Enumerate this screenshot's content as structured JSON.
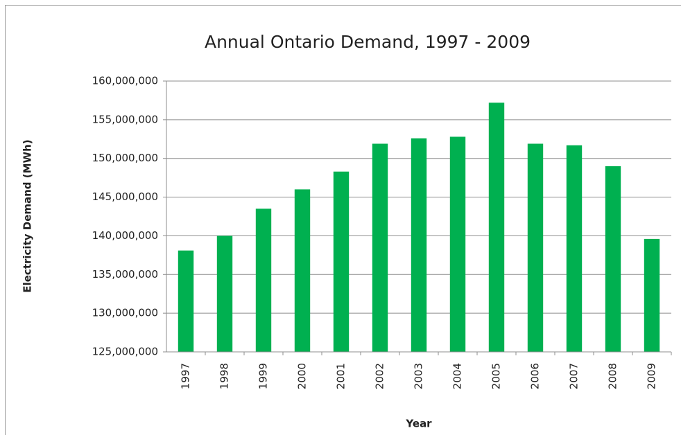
{
  "chart_data": {
    "type": "bar",
    "title": "Annual Ontario Demand, 1997 - 2009",
    "x_label": "Year",
    "y_label": "Electricity Demand (MWh)",
    "categories": [
      "1997",
      "1998",
      "1999",
      "2000",
      "2001",
      "2002",
      "2003",
      "2004",
      "2005",
      "2006",
      "2007",
      "2008",
      "2009"
    ],
    "values": [
      138100000,
      140000000,
      143500000,
      146000000,
      148300000,
      151900000,
      152600000,
      152800000,
      157200000,
      151900000,
      151700000,
      149000000,
      139600000
    ],
    "color": "#00b050",
    "ylim": [
      125000000,
      160000000
    ],
    "yticks": [
      {
        "value": 125000000,
        "label": "125,000,000"
      },
      {
        "value": 130000000,
        "label": "130,000,000"
      },
      {
        "value": 135000000,
        "label": "135,000,000"
      },
      {
        "value": 140000000,
        "label": "140,000,000"
      },
      {
        "value": 145000000,
        "label": "145,000,000"
      },
      {
        "value": 150000000,
        "label": "150,000,000"
      },
      {
        "value": 155000000,
        "label": "155,000,000"
      },
      {
        "value": 160000000,
        "label": "160,000,000"
      }
    ],
    "grid": true
  }
}
